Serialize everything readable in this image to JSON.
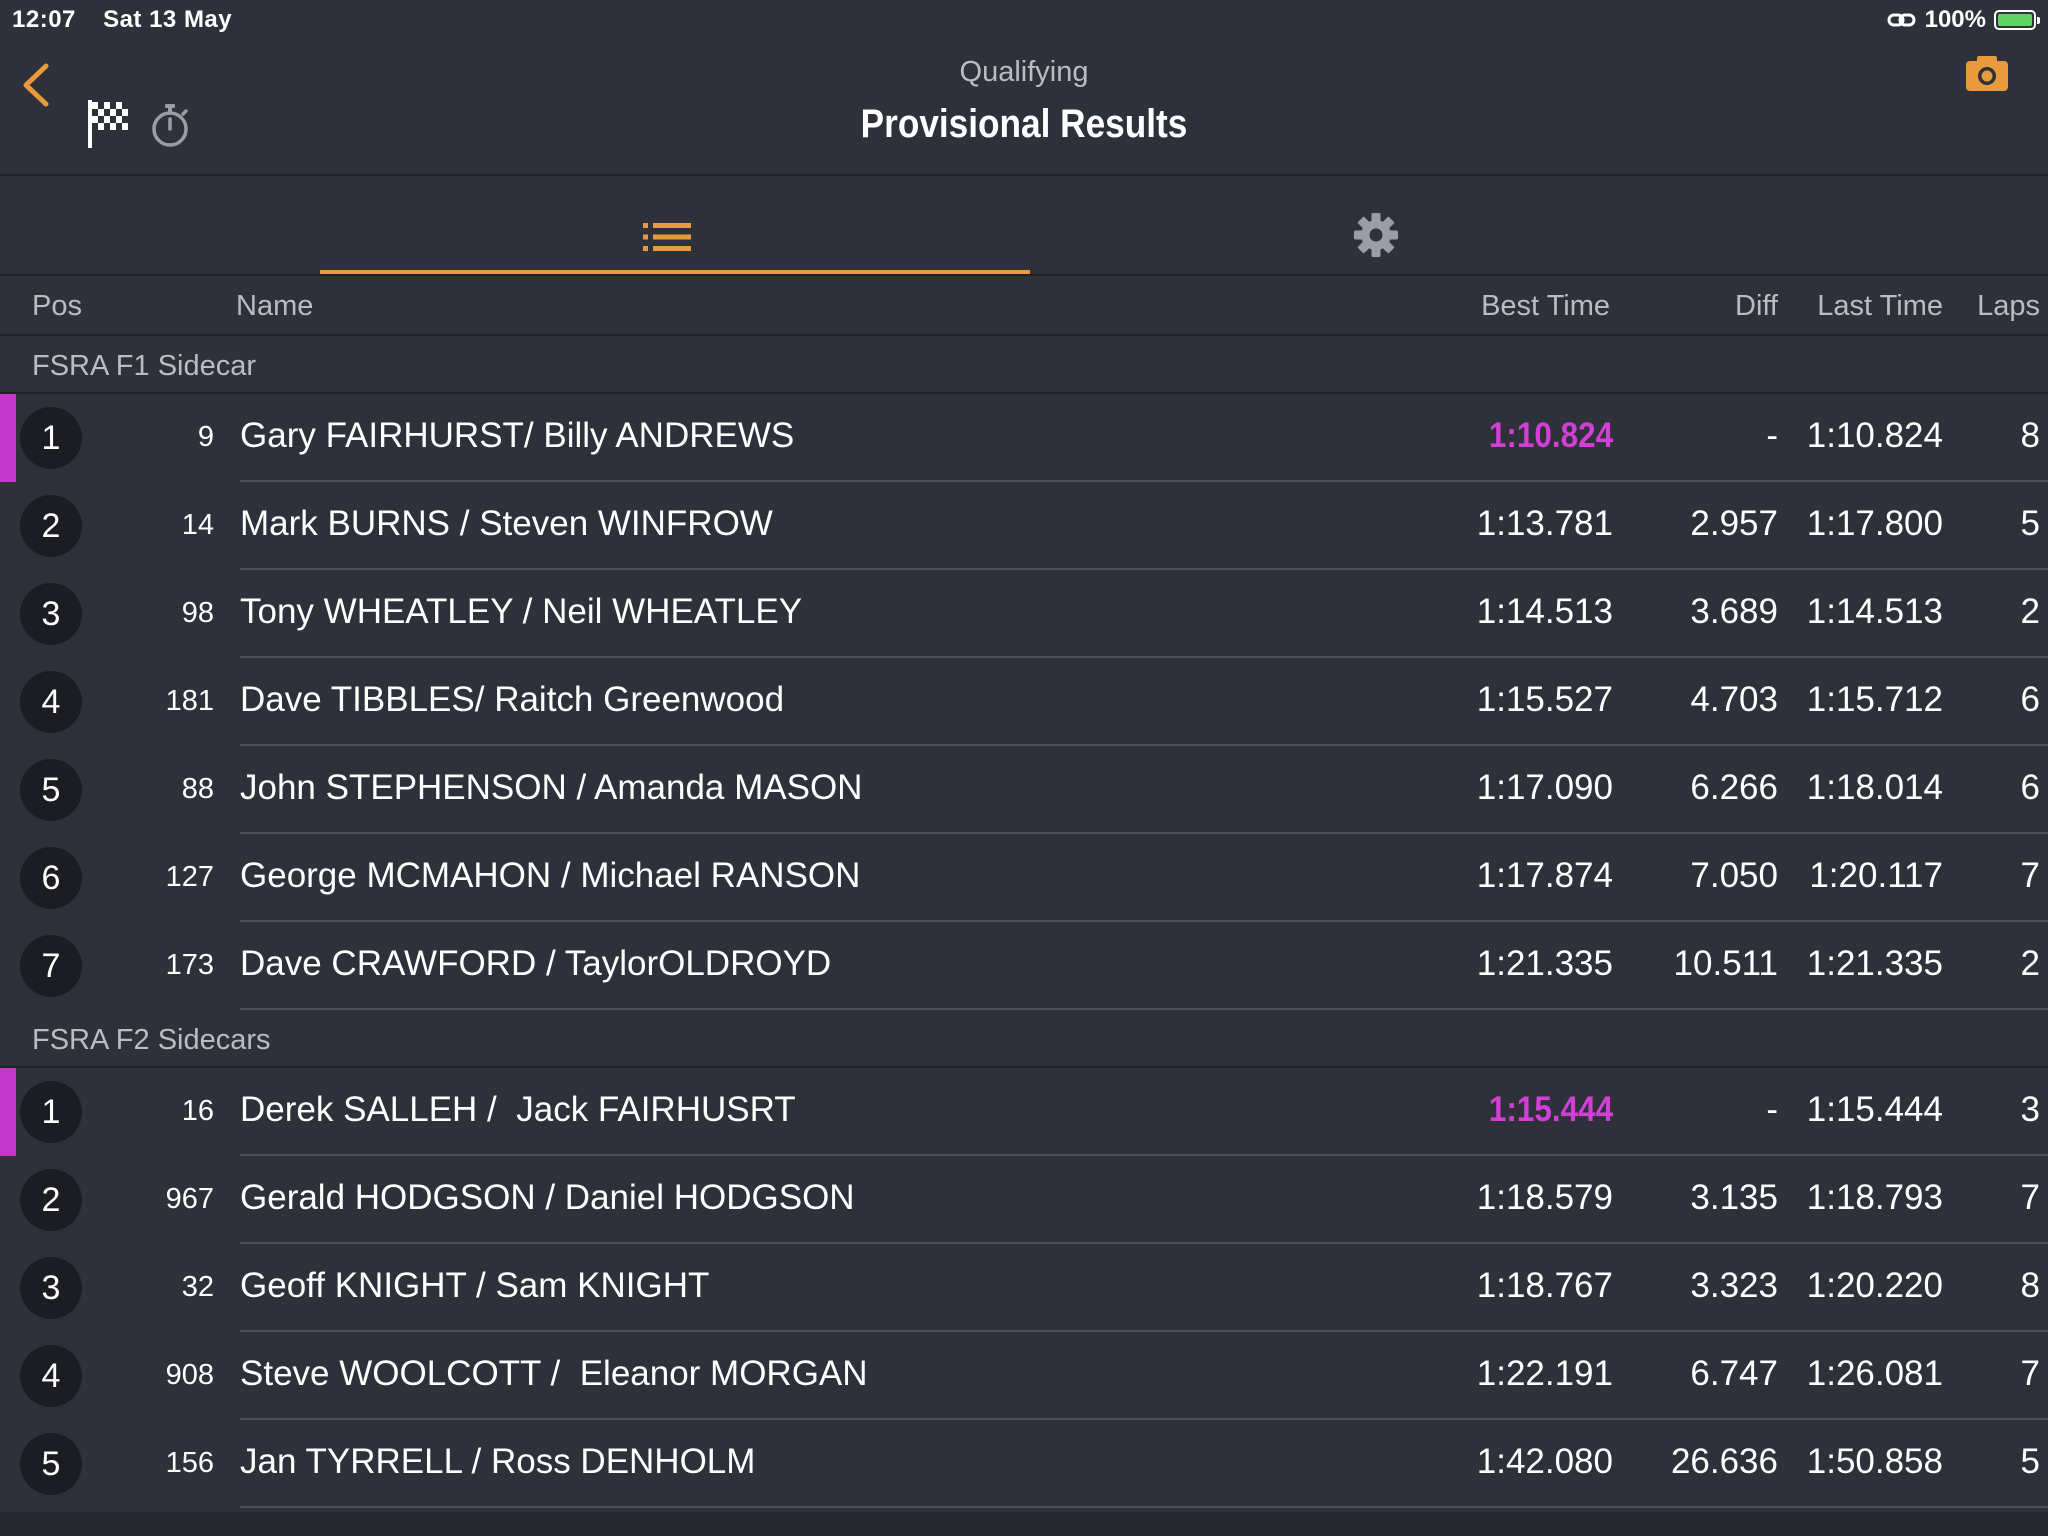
{
  "status_bar": {
    "time": "12:07",
    "date": "Sat 13 May",
    "battery": "100%",
    "colors": {
      "battery_fill": "#5fd35f"
    }
  },
  "header": {
    "subtitle": "Qualifying",
    "title": "Provisional Results",
    "icons": [
      "back-chevron-icon",
      "checkered-flag-icon",
      "stopwatch-icon",
      "camera-icon"
    ]
  },
  "tabs": [
    {
      "icon": "list-icon",
      "active": true
    },
    {
      "icon": "gear-icon",
      "active": false
    }
  ],
  "columns": {
    "pos": "Pos",
    "name": "Name",
    "best_time": "Best Time",
    "diff": "Diff",
    "last_time": "Last Time",
    "laps": "Laps"
  },
  "colors": {
    "accent": "#e99a3c",
    "fastest": "#d13fd6",
    "background": "#2e3139"
  },
  "sections": [
    {
      "title": "FSRA F1 Sidecar",
      "rows": [
        {
          "pos": "1",
          "num": "9",
          "name": "Gary FAIRHURST/ Billy ANDREWS",
          "best": "1:10.824",
          "diff": "-",
          "last": "1:10.824",
          "laps": "8",
          "leader": true
        },
        {
          "pos": "2",
          "num": "14",
          "name": "Mark BURNS / Steven WINFROW",
          "best": "1:13.781",
          "diff": "2.957",
          "last": "1:17.800",
          "laps": "5"
        },
        {
          "pos": "3",
          "num": "98",
          "name": "Tony WHEATLEY / Neil WHEATLEY",
          "best": "1:14.513",
          "diff": "3.689",
          "last": "1:14.513",
          "laps": "2"
        },
        {
          "pos": "4",
          "num": "181",
          "name": "Dave TIBBLES/ Raitch Greenwood",
          "best": "1:15.527",
          "diff": "4.703",
          "last": "1:15.712",
          "laps": "6"
        },
        {
          "pos": "5",
          "num": "88",
          "name": "John STEPHENSON / Amanda MASON",
          "best": "1:17.090",
          "diff": "6.266",
          "last": "1:18.014",
          "laps": "6"
        },
        {
          "pos": "6",
          "num": "127",
          "name": "George MCMAHON / Michael RANSON",
          "best": "1:17.874",
          "diff": "7.050",
          "last": "1:20.117",
          "laps": "7"
        },
        {
          "pos": "7",
          "num": "173",
          "name": "Dave CRAWFORD / TaylorOLDROYD",
          "best": "1:21.335",
          "diff": "10.511",
          "last": "1:21.335",
          "laps": "2"
        }
      ]
    },
    {
      "title": "FSRA F2 Sidecars",
      "rows": [
        {
          "pos": "1",
          "num": "16",
          "name": "Derek SALLEH /  Jack FAIRHUSRT",
          "best": "1:15.444",
          "diff": "-",
          "last": "1:15.444",
          "laps": "3",
          "leader": true
        },
        {
          "pos": "2",
          "num": "967",
          "name": "Gerald HODGSON / Daniel HODGSON",
          "best": "1:18.579",
          "diff": "3.135",
          "last": "1:18.793",
          "laps": "7"
        },
        {
          "pos": "3",
          "num": "32",
          "name": "Geoff KNIGHT / Sam KNIGHT",
          "best": "1:18.767",
          "diff": "3.323",
          "last": "1:20.220",
          "laps": "8"
        },
        {
          "pos": "4",
          "num": "908",
          "name": "Steve WOOLCOTT /  Eleanor MORGAN",
          "best": "1:22.191",
          "diff": "6.747",
          "last": "1:26.081",
          "laps": "7"
        },
        {
          "pos": "5",
          "num": "156",
          "name": "Jan TYRRELL / Ross DENHOLM",
          "best": "1:42.080",
          "diff": "26.636",
          "last": "1:50.858",
          "laps": "5"
        }
      ]
    }
  ]
}
